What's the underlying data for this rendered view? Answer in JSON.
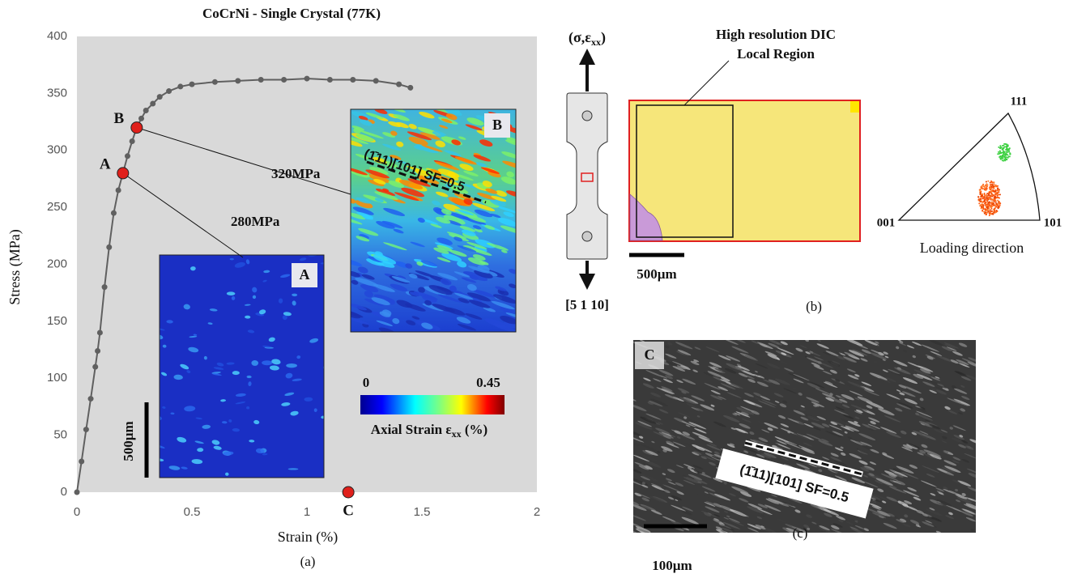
{
  "chart_data": {
    "type": "scatter",
    "title": "CoCrNi - Single Crystal (77K)",
    "x_label": "Strain (%)",
    "y_label": "Stress (MPa)",
    "caption": "(a)",
    "x": [
      0,
      0.02,
      0.04,
      0.06,
      0.08,
      0.09,
      0.1,
      0.12,
      0.14,
      0.16,
      0.18,
      0.2,
      0.22,
      0.24,
      0.26,
      0.28,
      0.3,
      0.33,
      0.36,
      0.4,
      0.45,
      0.5,
      0.6,
      0.7,
      0.8,
      0.9,
      1.0,
      1.1,
      1.2,
      1.3,
      1.4,
      1.45
    ],
    "values": [
      0,
      27,
      55,
      82,
      110,
      124,
      140,
      180,
      215,
      245,
      265,
      280,
      295,
      308,
      320,
      328,
      335,
      341,
      347,
      352,
      356,
      358,
      360,
      361,
      362,
      362,
      363,
      362,
      362,
      361,
      358,
      355
    ],
    "color": "#606060",
    "marker_color": "#e0201b",
    "xlim": [
      0,
      2
    ],
    "xticks": [
      0,
      0.5,
      1,
      1.5,
      2
    ],
    "ylim": [
      0,
      400
    ],
    "yticks": [
      0,
      50,
      100,
      150,
      200,
      250,
      300,
      350,
      400
    ],
    "annotations": [
      {
        "label": "A",
        "x": 0.2,
        "y": 280,
        "text": "280MPa"
      },
      {
        "label": "B",
        "x": 0.26,
        "y": 320,
        "text": "320MPa"
      },
      {
        "label": "C",
        "x": 1.18,
        "y": 0
      }
    ],
    "insets": [
      {
        "label": "A"
      },
      {
        "label": "B",
        "slip": "(1̄11)[101] SF=0.5"
      }
    ],
    "scale_bar": "500µm",
    "colorbar": {
      "min": 0,
      "max": 0.45,
      "label": "Axial Strain ε",
      "label_sub": "xx",
      "label_end": " (%)"
    }
  },
  "panel_b": {
    "load_label": "(σ,ε",
    "load_sub": "xx",
    "load_end": ")",
    "direction": "[5 1 10]",
    "dic_title": "High resolution DIC",
    "dic_subtitle": "Local Region",
    "scale_bar": "500µm",
    "ipf_corners": [
      "111",
      "001",
      "101"
    ],
    "ipf_label": "Loading direction",
    "caption": "(b)"
  },
  "panel_c": {
    "label": "C",
    "slip": "(1̄11)[101] SF=0.5",
    "scale_bar": "100µm",
    "caption": "(c)"
  }
}
